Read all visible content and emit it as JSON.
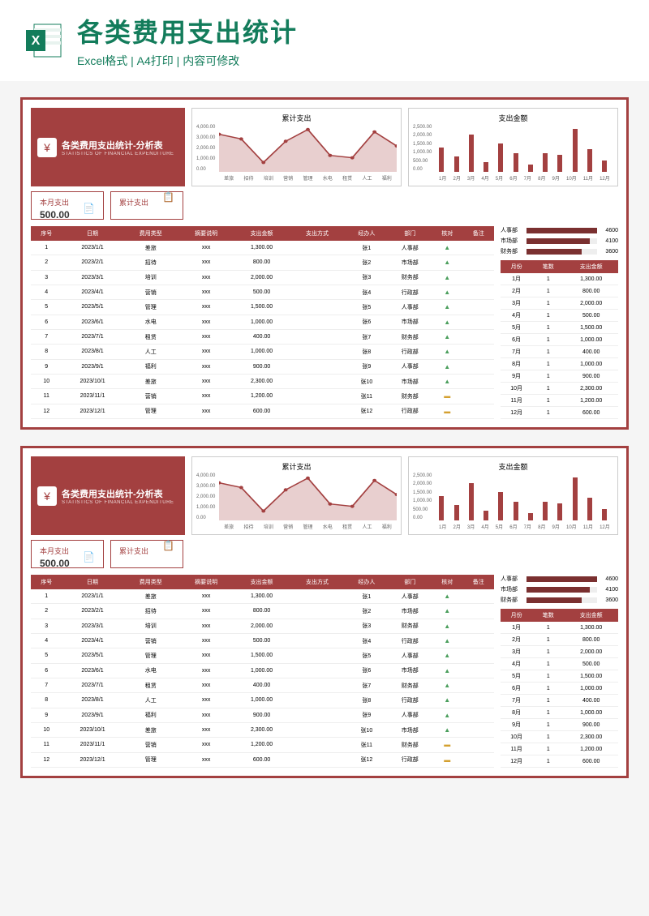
{
  "header": {
    "title": "各类费用支出统计",
    "subtitle": "Excel格式 | A4打印 | 内容可修改",
    "excel_label": "X"
  },
  "colors": {
    "primary": "#a34040",
    "primary_dark": "#7a3030",
    "accent": "#137c5b",
    "bg": "#ffffff",
    "grid": "#eeeeee"
  },
  "template": {
    "title_zh": "各类费用支出统计-分析表",
    "title_en": "STATISTICS OF FINANCIAL EXPENDITURE",
    "icon_glyph": "¥",
    "stat_boxes": [
      {
        "label": "本月支出",
        "value": "500.00",
        "icon": "📄"
      },
      {
        "label": "累计支出",
        "value": "",
        "icon": "📋"
      }
    ],
    "line_chart": {
      "title": "累计支出",
      "y_ticks": [
        "4,000.00",
        "3,000.00",
        "2,000.00",
        "1,000.00",
        "0.00"
      ],
      "x_labels": [
        "差旅",
        "招待",
        "培训",
        "营销",
        "管理",
        "水电",
        "租赁",
        "人工",
        "福利"
      ],
      "values": [
        3200,
        2800,
        800,
        2600,
        3600,
        1400,
        1200,
        3400,
        2200
      ],
      "ylim": [
        0,
        4000
      ],
      "line_color": "#a34040",
      "fill_color": "#a34040"
    },
    "bar_chart": {
      "title": "支出金额",
      "y_ticks": [
        "2,500.00",
        "2,000.00",
        "1,500.00",
        "1,000.00",
        "500.00",
        "0.00"
      ],
      "x_labels": [
        "1月",
        "2月",
        "3月",
        "4月",
        "5月",
        "6月",
        "7月",
        "8月",
        "9月",
        "10月",
        "11月",
        "12月"
      ],
      "values": [
        1300,
        800,
        2000,
        500,
        1500,
        1000,
        400,
        1000,
        900,
        2300,
        1200,
        600
      ],
      "ylim": [
        0,
        2500
      ],
      "bar_color": "#a34040"
    },
    "table": {
      "headers": [
        "序号",
        "日期",
        "费用类型",
        "摘要说明",
        "支出金额",
        "支出方式",
        "经办人",
        "部门",
        "核对",
        "备注"
      ],
      "rows": [
        [
          "1",
          "2023/1/1",
          "差旅",
          "xxx",
          "1,300.00",
          "",
          "张1",
          "人事部",
          "up",
          ""
        ],
        [
          "2",
          "2023/2/1",
          "招待",
          "xxx",
          "800.00",
          "",
          "张2",
          "市场部",
          "up",
          ""
        ],
        [
          "3",
          "2023/3/1",
          "培训",
          "xxx",
          "2,000.00",
          "",
          "张3",
          "财务部",
          "up",
          ""
        ],
        [
          "4",
          "2023/4/1",
          "营销",
          "xxx",
          "500.00",
          "",
          "张4",
          "行政部",
          "up",
          ""
        ],
        [
          "5",
          "2023/5/1",
          "管理",
          "xxx",
          "1,500.00",
          "",
          "张5",
          "人事部",
          "up",
          ""
        ],
        [
          "6",
          "2023/6/1",
          "水电",
          "xxx",
          "1,000.00",
          "",
          "张6",
          "市场部",
          "up",
          ""
        ],
        [
          "7",
          "2023/7/1",
          "租赁",
          "xxx",
          "400.00",
          "",
          "张7",
          "财务部",
          "up",
          ""
        ],
        [
          "8",
          "2023/8/1",
          "人工",
          "xxx",
          "1,000.00",
          "",
          "张8",
          "行政部",
          "up",
          ""
        ],
        [
          "9",
          "2023/9/1",
          "福利",
          "xxx",
          "900.00",
          "",
          "张9",
          "人事部",
          "up",
          ""
        ],
        [
          "10",
          "2023/10/1",
          "差旅",
          "xxx",
          "2,300.00",
          "",
          "张10",
          "市场部",
          "up",
          ""
        ],
        [
          "11",
          "2023/11/1",
          "营销",
          "xxx",
          "1,200.00",
          "",
          "张11",
          "财务部",
          "mid",
          ""
        ],
        [
          "12",
          "2023/12/1",
          "管理",
          "xxx",
          "600.00",
          "",
          "张12",
          "行政部",
          "mid",
          ""
        ]
      ]
    },
    "dept_bars": [
      {
        "label": "人事部",
        "value": 4600,
        "max": 4600
      },
      {
        "label": "市场部",
        "value": 4100,
        "max": 4600
      },
      {
        "label": "财务部",
        "value": 3600,
        "max": 4600
      }
    ],
    "month_summary": {
      "headers": [
        "月份",
        "笔数",
        "支出金额"
      ],
      "rows": [
        [
          "1月",
          "1",
          "1,300.00"
        ],
        [
          "2月",
          "1",
          "800.00"
        ],
        [
          "3月",
          "1",
          "2,000.00"
        ],
        [
          "4月",
          "1",
          "500.00"
        ],
        [
          "5月",
          "1",
          "1,500.00"
        ],
        [
          "6月",
          "1",
          "1,000.00"
        ],
        [
          "7月",
          "1",
          "400.00"
        ],
        [
          "8月",
          "1",
          "1,000.00"
        ],
        [
          "9月",
          "1",
          "900.00"
        ],
        [
          "10月",
          "1",
          "2,300.00"
        ],
        [
          "11月",
          "1",
          "1,200.00"
        ],
        [
          "12月",
          "1",
          "600.00"
        ]
      ]
    }
  }
}
